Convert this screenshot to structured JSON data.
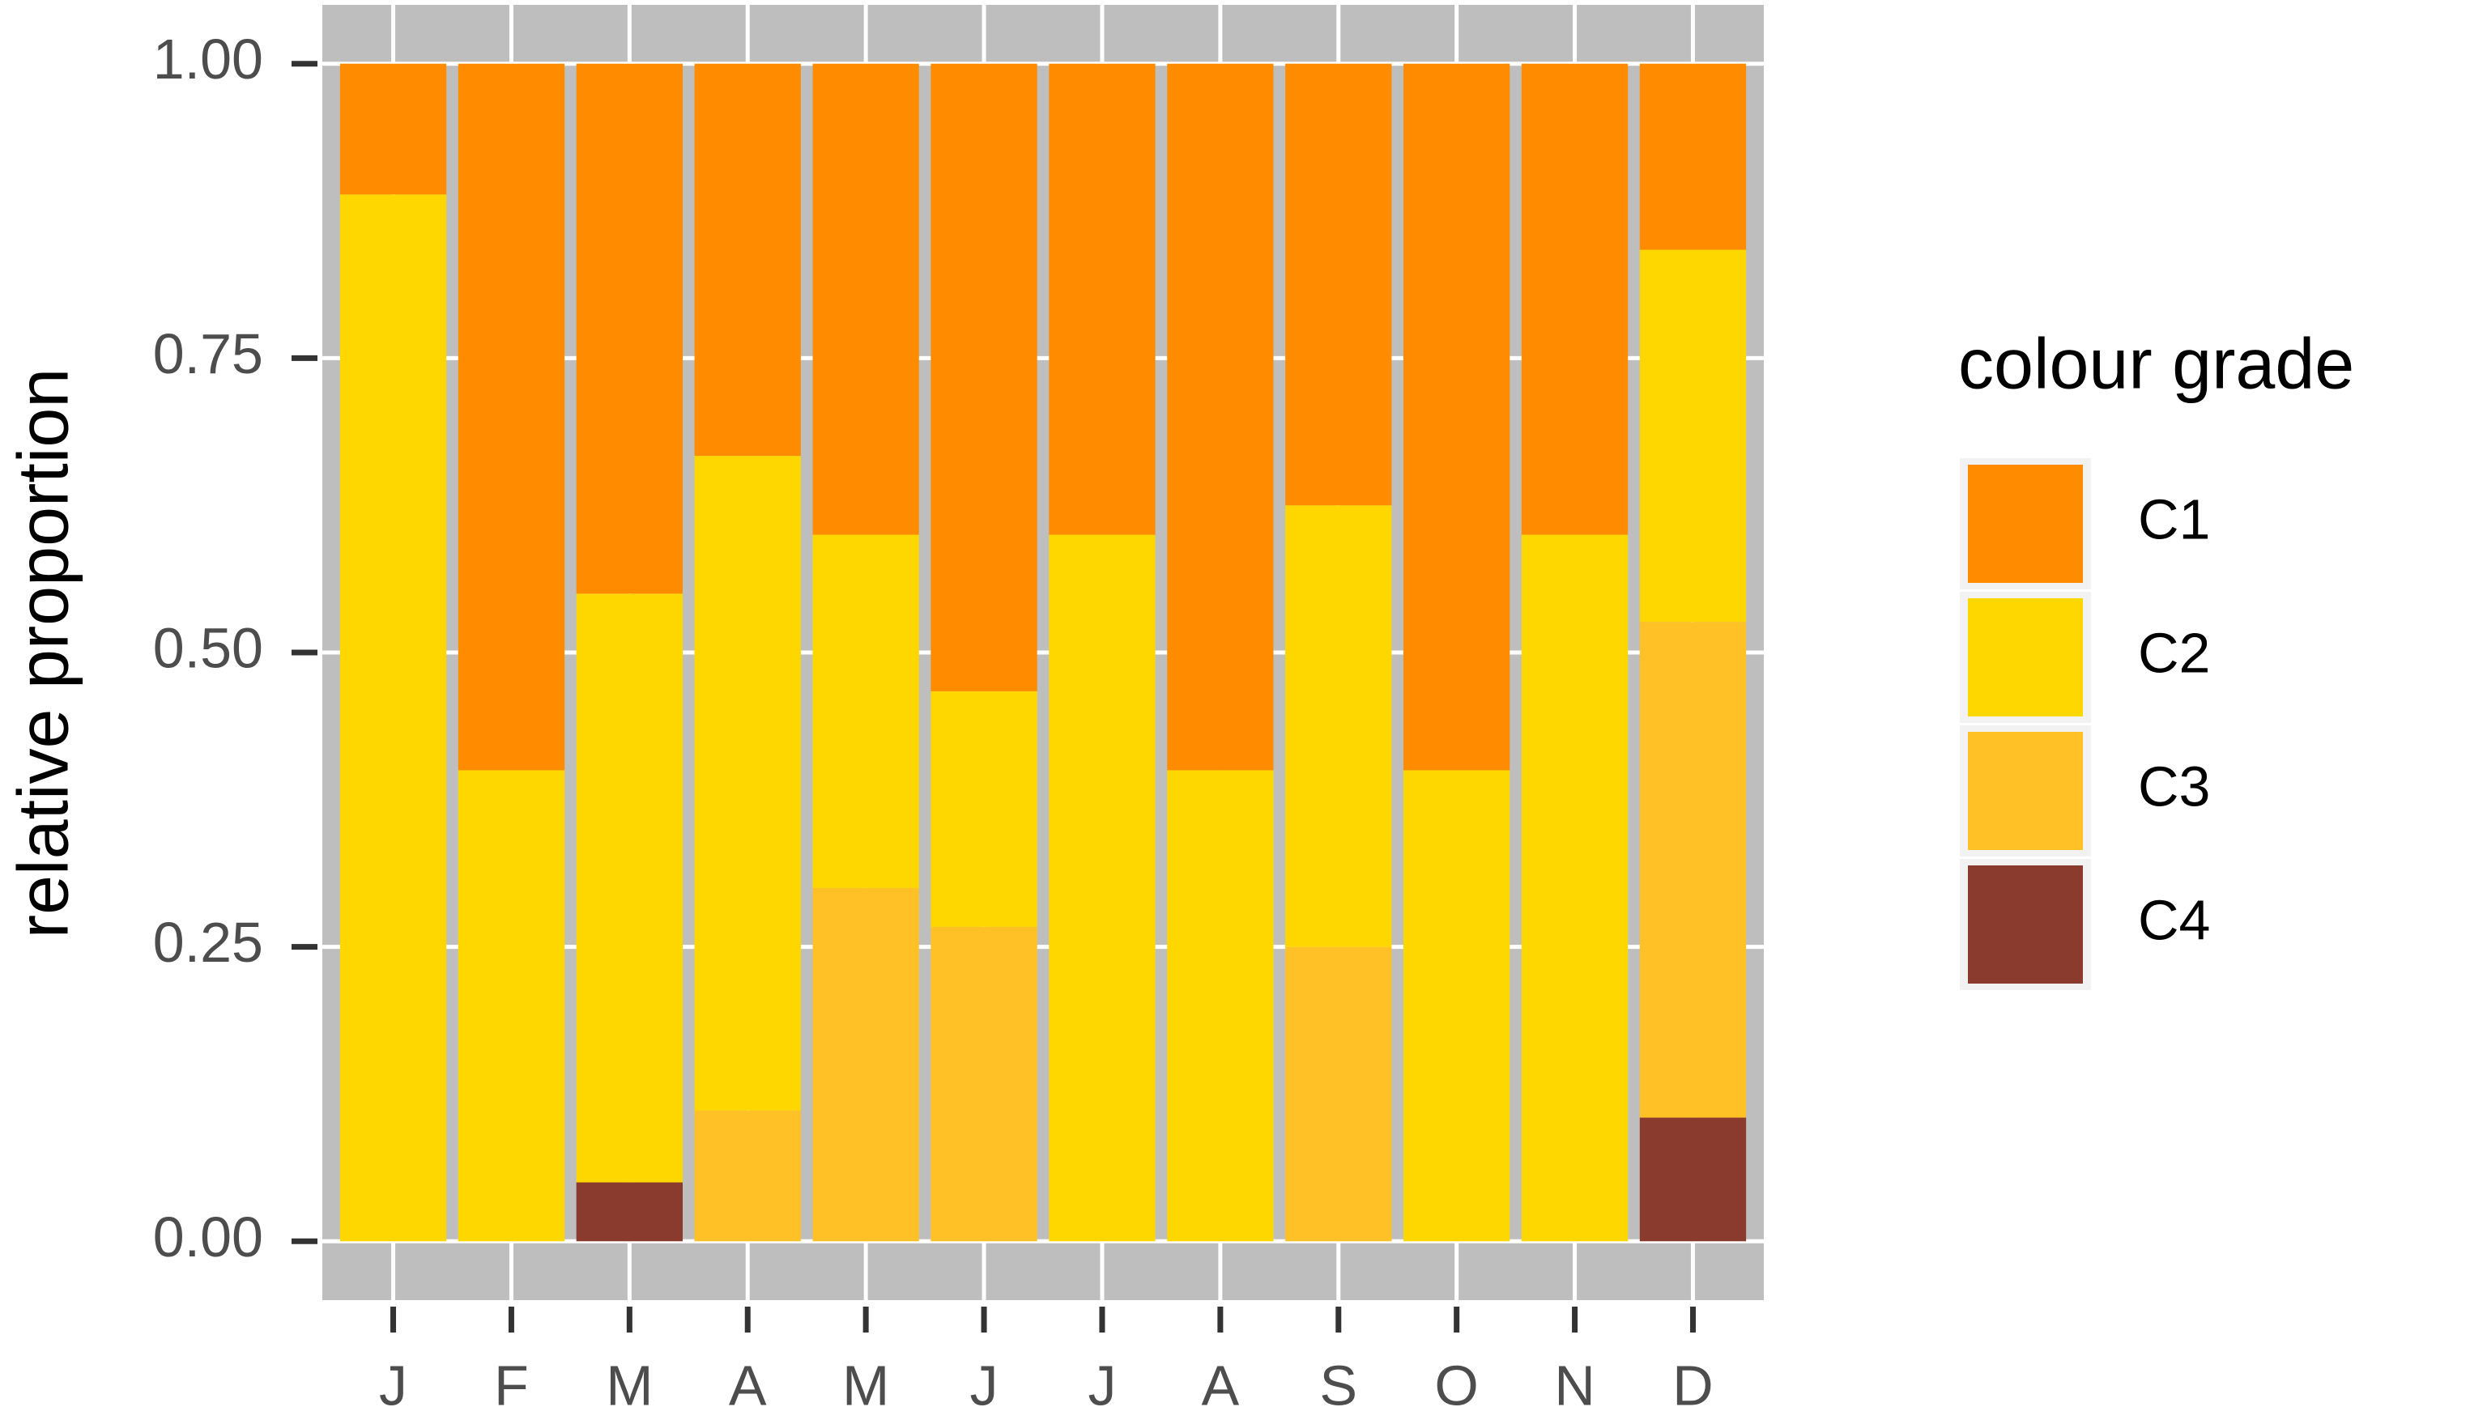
{
  "chart_data": {
    "type": "stacked-bar",
    "y_label": "relative proportion",
    "legend_title": "colour grade",
    "categories": [
      "J",
      "F",
      "M",
      "A",
      "M",
      "J",
      "J",
      "A",
      "S",
      "O",
      "N",
      "D"
    ],
    "series": [
      {
        "name": "C1",
        "color": "#FF8C00",
        "values": [
          0.111,
          0.6,
          0.45,
          0.333,
          0.4,
          0.533,
          0.4,
          0.6,
          0.375,
          0.6,
          0.4,
          0.158
        ]
      },
      {
        "name": "C2",
        "color": "#FFD700",
        "values": [
          0.889,
          0.4,
          0.5,
          0.556,
          0.3,
          0.2,
          0.6,
          0.4,
          0.375,
          0.4,
          0.6,
          0.316
        ]
      },
      {
        "name": "C3",
        "color": "#FFC125",
        "values": [
          0,
          0,
          0,
          0.111,
          0.3,
          0.267,
          0,
          0,
          0.25,
          0,
          0,
          0.421
        ]
      },
      {
        "name": "C4",
        "color": "#8B3A2E",
        "values": [
          0,
          0,
          0.05,
          0,
          0,
          0,
          0,
          0,
          0,
          0,
          0,
          0.105
        ]
      }
    ],
    "ylim": [
      -0.05,
      1.05
    ],
    "yticks": [
      {
        "value": 0,
        "label": "0.00"
      },
      {
        "value": 0.25,
        "label": "0.25"
      },
      {
        "value": 0.5,
        "label": "0.50"
      },
      {
        "value": 0.75,
        "label": "0.75"
      },
      {
        "value": 1,
        "label": "1.00"
      }
    ],
    "grid": true,
    "legend": "right"
  }
}
